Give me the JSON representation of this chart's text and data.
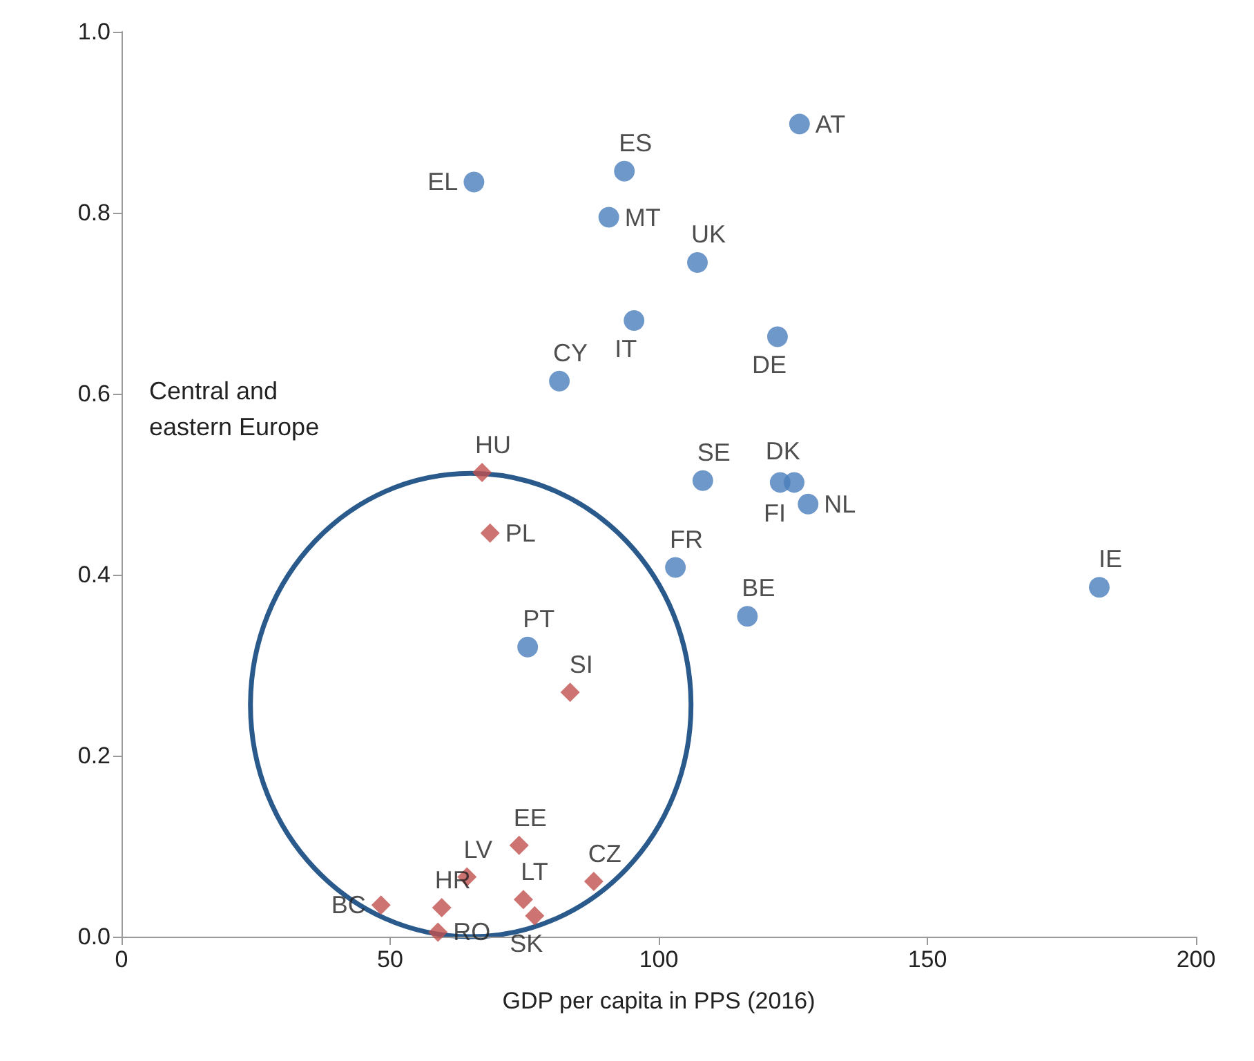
{
  "chart_data": {
    "type": "scatter",
    "xlabel": "GDP per capita in PPS (2016)",
    "xlim": [
      0,
      200
    ],
    "xticks": [
      0,
      50,
      100,
      150,
      200
    ],
    "ylim": [
      0,
      1
    ],
    "yticks": [
      {
        "value": 0,
        "label": "0.0"
      },
      {
        "value": 0.2,
        "label": "0.2"
      },
      {
        "value": 0.4,
        "label": "0.4"
      },
      {
        "value": 0.6,
        "label": "0.6"
      },
      {
        "value": 0.8,
        "label": "0.8"
      },
      {
        "value": 1,
        "label": "1.0"
      }
    ],
    "grid": false,
    "annotations": [
      "Central and eastern Europe"
    ],
    "series": [
      {
        "color": "#4a7ebb",
        "marker": "circle",
        "x": [
          65.6,
          93.6,
          126.2,
          90.7,
          107.2,
          95.4,
          81.5,
          122.1,
          108.2,
          122.6,
          125.2,
          127.8,
          103.1,
          116.5,
          182,
          75.6
        ],
        "values": [
          0.834,
          0.846,
          0.898,
          0.795,
          0.745,
          0.681,
          0.614,
          0.663,
          0.504,
          0.502,
          0.502,
          0.478,
          0.408,
          0.354,
          0.386,
          0.32
        ],
        "value_labels": [
          "EL",
          "ES",
          "AT",
          "MT",
          "UK",
          "IT",
          "CY",
          "DE",
          "SE",
          "DK",
          "FI",
          "NL",
          "FR",
          "BE",
          "IE",
          "PT"
        ]
      },
      {
        "color": "#c0504d",
        "marker": "diamond",
        "x": [
          67.1,
          68.6,
          83.5,
          74.0,
          87.9,
          64.3,
          59.6,
          48.3,
          58.9,
          74.8,
          76.9
        ],
        "values": [
          0.513,
          0.446,
          0.27,
          0.101,
          0.061,
          0.066,
          0.032,
          0.035,
          0.005,
          0.041,
          0.023
        ],
        "value_labels": [
          "HU",
          "PL",
          "SI",
          "EE",
          "CZ",
          "LV",
          "HR",
          "BC",
          "RO",
          "LT",
          "SK"
        ]
      }
    ]
  }
}
